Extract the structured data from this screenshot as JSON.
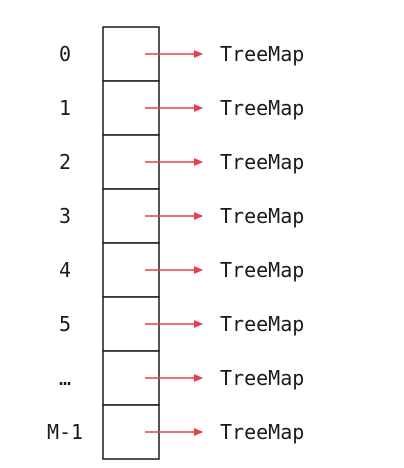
{
  "buckets": [
    {
      "index_label": "0",
      "target_label": "TreeMap"
    },
    {
      "index_label": "1",
      "target_label": "TreeMap"
    },
    {
      "index_label": "2",
      "target_label": "TreeMap"
    },
    {
      "index_label": "3",
      "target_label": "TreeMap"
    },
    {
      "index_label": "4",
      "target_label": "TreeMap"
    },
    {
      "index_label": "5",
      "target_label": "TreeMap"
    },
    {
      "index_label": "…",
      "target_label": "TreeMap"
    },
    {
      "index_label": "M-1",
      "target_label": "TreeMap"
    }
  ],
  "colors": {
    "arrow": "#e8404a",
    "cell_border": "#1a1a1a",
    "text": "#1a1a1a"
  }
}
